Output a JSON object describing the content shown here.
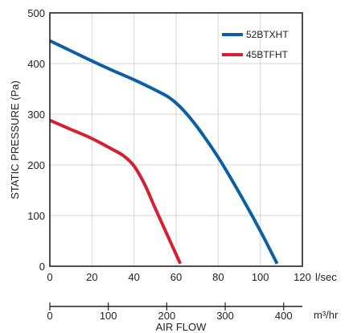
{
  "colors": {
    "background": "#ffffff",
    "grid": "#d6d6d6",
    "axis": "#222222",
    "text": "#222222"
  },
  "chart_data": {
    "type": "line",
    "title": "",
    "xlabel": "AIR FLOW",
    "ylabel": "STATIC PRESSURE (Pa)",
    "grid": true,
    "legend_position": "top-right",
    "x_primary": {
      "unit": "l/sec",
      "range": [
        0,
        120
      ],
      "ticks": [
        "0",
        "20",
        "40",
        "60",
        "80",
        "100",
        "120"
      ]
    },
    "x_secondary": {
      "unit": "m³/hr",
      "range": [
        0,
        432
      ],
      "ticks": [
        {
          "label": "0",
          "value": 0
        },
        {
          "label": "100",
          "value": 100
        },
        {
          "label": "200",
          "value": 200
        },
        {
          "label": "300",
          "value": 300
        },
        {
          "label": "400",
          "value": 400
        }
      ]
    },
    "y_axis": {
      "range": [
        0,
        500
      ],
      "ticks": [
        "0",
        "100",
        "200",
        "300",
        "400",
        "500"
      ]
    },
    "series": [
      {
        "name": "52BTXHT",
        "color": "#0b5fa5",
        "points": [
          [
            0,
            445
          ],
          [
            10,
            425
          ],
          [
            20,
            405
          ],
          [
            30,
            386
          ],
          [
            40,
            368
          ],
          [
            50,
            348
          ],
          [
            57,
            332
          ],
          [
            63,
            310
          ],
          [
            70,
            275
          ],
          [
            80,
            215
          ],
          [
            90,
            145
          ],
          [
            100,
            70
          ],
          [
            108,
            5
          ]
        ]
      },
      {
        "name": "45BTFHT",
        "color": "#d42030",
        "points": [
          [
            0,
            288
          ],
          [
            10,
            270
          ],
          [
            20,
            252
          ],
          [
            30,
            230
          ],
          [
            35,
            218
          ],
          [
            40,
            198
          ],
          [
            45,
            162
          ],
          [
            50,
            115
          ],
          [
            56,
            60
          ],
          [
            62,
            5
          ]
        ]
      }
    ]
  }
}
